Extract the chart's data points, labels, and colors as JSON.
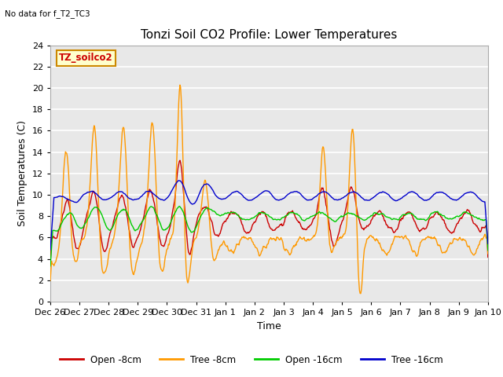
{
  "title": "Tonzi Soil CO2 Profile: Lower Temperatures",
  "subtitle": "No data for f_T2_TC3",
  "xlabel": "Time",
  "ylabel": "Soil Temperatures (C)",
  "ylim": [
    0,
    24
  ],
  "yticks": [
    0,
    2,
    4,
    6,
    8,
    10,
    12,
    14,
    16,
    18,
    20,
    22,
    24
  ],
  "x_labels": [
    "Dec 26",
    "Dec 27",
    "Dec 28",
    "Dec 29",
    "Dec 30",
    "Dec 31",
    "Jan 1",
    "Jan 2",
    "Jan 3",
    "Jan 4",
    "Jan 5",
    "Jan 6",
    "Jan 7",
    "Jan 8",
    "Jan 9",
    "Jan 10"
  ],
  "legend_label": "TZ_soilco2",
  "legend_box_color": "#ffffcc",
  "legend_box_edge": "#cc8800",
  "legend_text_color": "#cc0000",
  "series": {
    "open_8cm": {
      "color": "#cc0000",
      "label": "Open -8cm"
    },
    "tree_8cm": {
      "color": "#ff9900",
      "label": "Tree -8cm"
    },
    "open_16cm": {
      "color": "#00cc00",
      "label": "Open -16cm"
    },
    "tree_16cm": {
      "color": "#0000cc",
      "label": "Tree -16cm"
    }
  },
  "plot_bg_color": "#e8e8e8",
  "grid_color": "#ffffff",
  "title_fontsize": 11,
  "axis_fontsize": 9,
  "tick_fontsize": 8
}
